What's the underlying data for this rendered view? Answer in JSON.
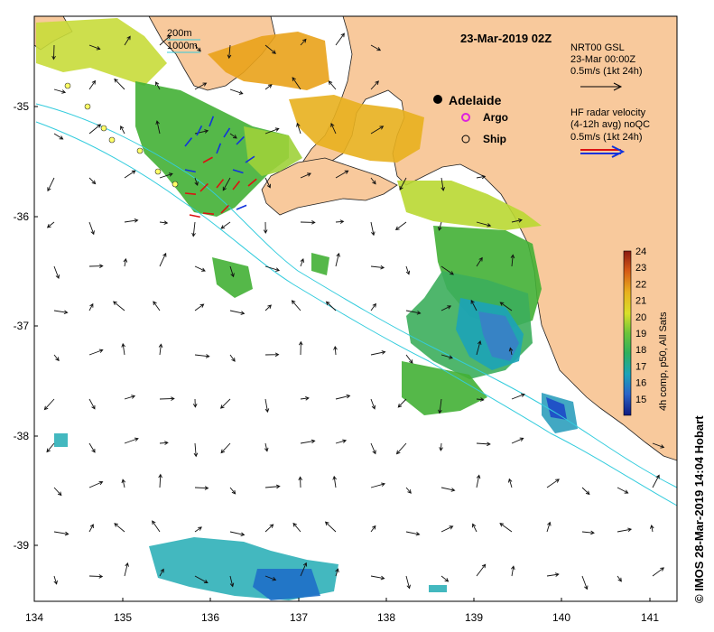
{
  "map": {
    "title": "23-Mar-2019 02Z",
    "bathymetry_legend": [
      "200m",
      "1000m"
    ],
    "city": "Adelaide",
    "markers": {
      "argo": "Argo",
      "ship": "Ship"
    },
    "gsl_legend": [
      "NRT00 GSL",
      "23-Mar 00:00Z",
      "0.5m/s (1kt 24h)"
    ],
    "radar_legend": [
      "HF radar velocity",
      "(4-12h avg) noQC",
      "0.5m/s (1kt 24h)"
    ],
    "colorbar": {
      "label": "4h comp, p50, All Sats",
      "ticks": [
        "24",
        "23",
        "22",
        "21",
        "20",
        "19",
        "18",
        "17",
        "16",
        "15"
      ]
    },
    "credit": "© IMOS 28-Mar-2019 14:04 Hobart",
    "x_ticks": [
      "134",
      "135",
      "136",
      "137",
      "138",
      "139",
      "140",
      "141"
    ],
    "y_ticks": [
      "-35",
      "-36",
      "-37",
      "-38",
      "-39"
    ],
    "colors": {
      "land": "#f8c99c",
      "bathy": "#33ccdd",
      "radar_blue": "#1133dd",
      "radar_red": "#dd1111",
      "argo": "#dd22dd"
    }
  }
}
